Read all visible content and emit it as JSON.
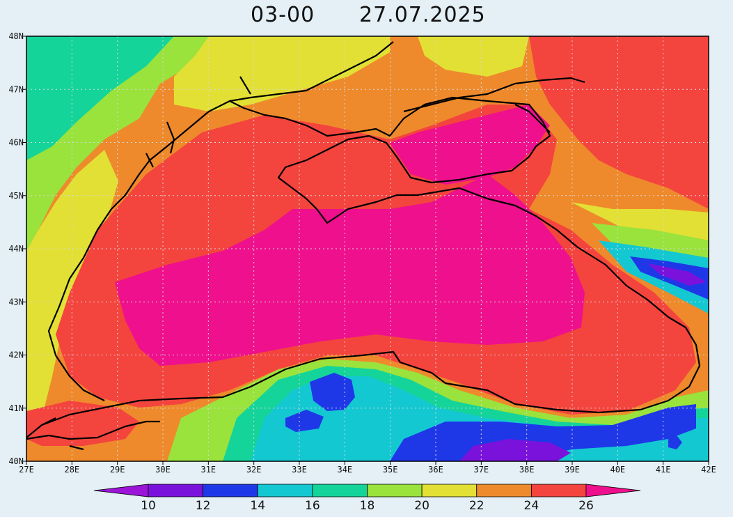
{
  "title": {
    "time": "03-00",
    "date": "27.07.2025"
  },
  "map": {
    "lon_range": [
      27,
      42
    ],
    "lat_range": [
      40,
      48
    ],
    "x_ticks": [
      "27E",
      "28E",
      "29E",
      "30E",
      "31E",
      "32E",
      "33E",
      "34E",
      "35E",
      "36E",
      "37E",
      "38E",
      "39E",
      "40E",
      "41E",
      "42E"
    ],
    "y_ticks": [
      "40N",
      "41N",
      "42N",
      "43N",
      "44N",
      "45N",
      "46N",
      "47N",
      "48N"
    ],
    "grid": true,
    "background_color": "#e4f0f6"
  },
  "colorbar": {
    "labels": [
      "10",
      "12",
      "14",
      "16",
      "18",
      "20",
      "22",
      "24",
      "26"
    ],
    "bins": [
      {
        "color": "#9b14d8"
      },
      {
        "color": "#7a12dc"
      },
      {
        "color": "#1e38e8"
      },
      {
        "color": "#14c8d2"
      },
      {
        "color": "#14d49a"
      },
      {
        "color": "#9ae23c"
      },
      {
        "color": "#e2e034"
      },
      {
        "color": "#ee8a2c"
      },
      {
        "color": "#f4443e"
      },
      {
        "color": "#ee108c"
      }
    ]
  },
  "legend_colors": {
    "land_cool": "#14d49a",
    "land_green": "#9ae23c",
    "land_yellow": "#e2e034",
    "land_orange": "#ee8a2c",
    "sea_red": "#f4443e",
    "sea_magenta": "#ee108c",
    "cold_cyan": "#14c8d2",
    "cold_blue": "#1e38e8",
    "cold_purple": "#7a12dc",
    "coast": "#000000",
    "grid": "#c8c8c8"
  }
}
